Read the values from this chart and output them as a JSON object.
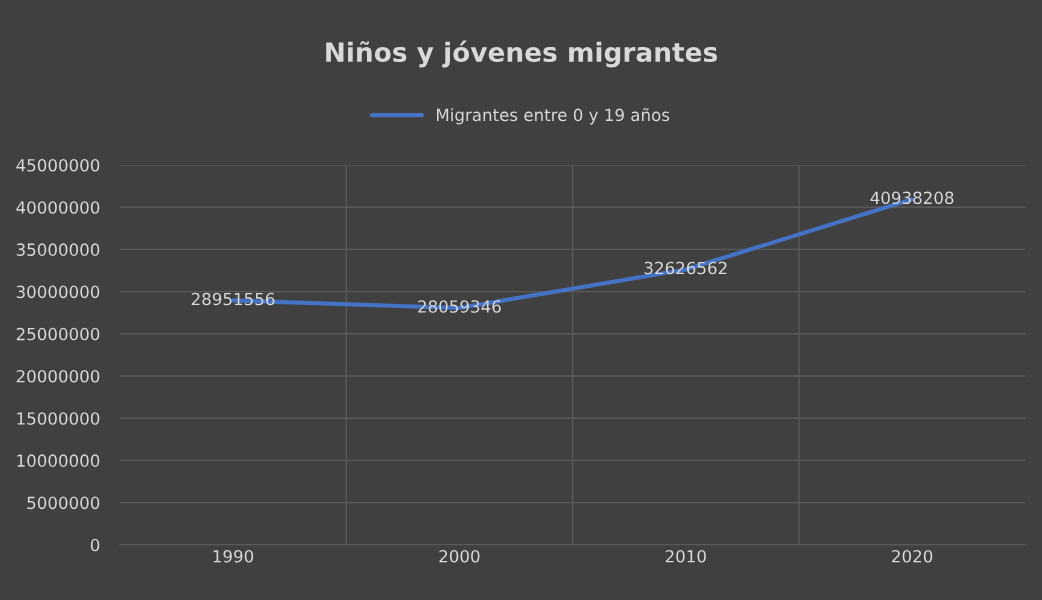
{
  "chart_data": {
    "type": "line",
    "title": "Niños y jóvenes migrantes",
    "categories": [
      "1990",
      "2000",
      "2010",
      "2020"
    ],
    "series": [
      {
        "name": "Migrantes entre 0 y 19 años",
        "color": "#4472c4",
        "values": [
          28951556,
          28059346,
          32626562,
          40938208
        ]
      }
    ],
    "ylim": [
      0,
      45000000
    ],
    "yticks": [
      0,
      5000000,
      10000000,
      15000000,
      20000000,
      25000000,
      30000000,
      35000000,
      40000000,
      45000000
    ],
    "grid": true,
    "legend": "top",
    "data_labels": true,
    "marker": "none",
    "line_style": "solid"
  }
}
